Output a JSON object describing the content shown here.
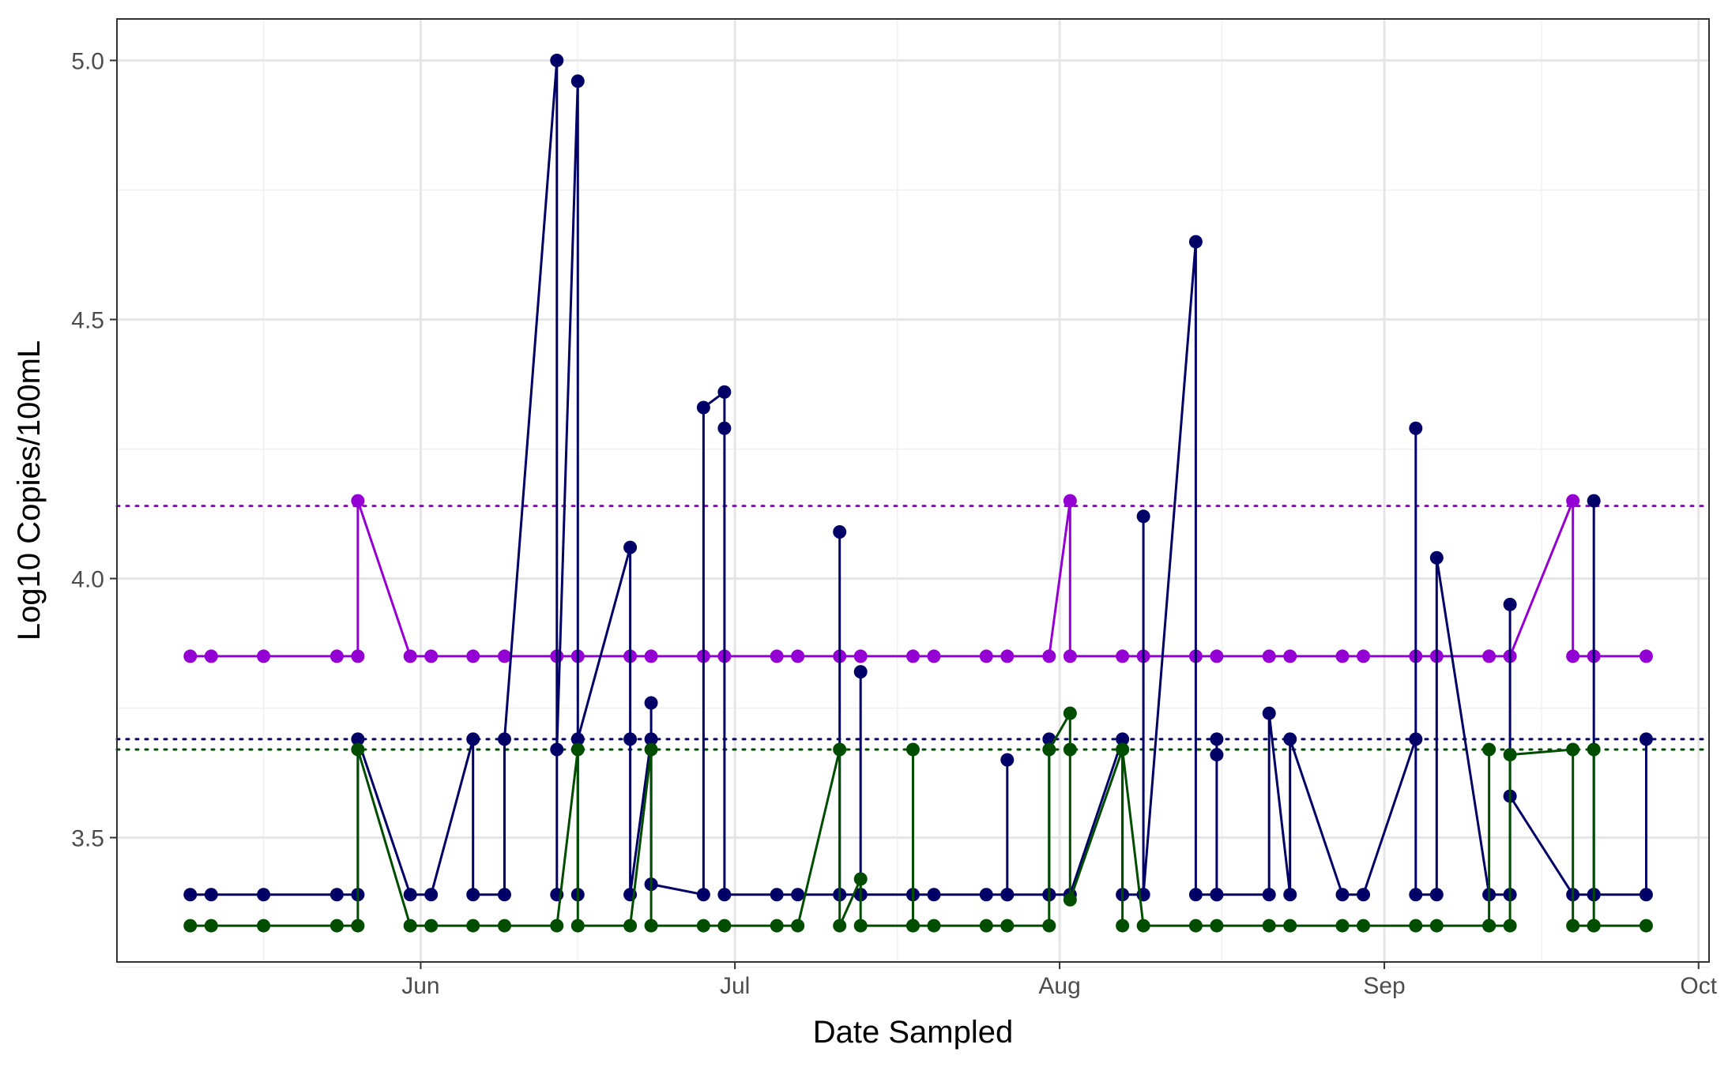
{
  "chart_data": {
    "type": "line",
    "title": "",
    "xlabel": "Date Sampled",
    "ylabel": "Log10 Copies/100mL",
    "x_range": [
      "2024-05-03",
      "2024-10-02"
    ],
    "ylim": [
      3.26,
      5.08
    ],
    "x_ticks": [
      {
        "date": "2024-06-01",
        "label": "Jun"
      },
      {
        "date": "2024-07-01",
        "label": "Jul"
      },
      {
        "date": "2024-08-01",
        "label": "Aug"
      },
      {
        "date": "2024-09-01",
        "label": "Sep"
      },
      {
        "date": "2024-10-01",
        "label": "Oct"
      }
    ],
    "y_ticks": [
      3.5,
      4.0,
      4.5,
      5.0
    ],
    "y_minor_ticks": [
      3.25,
      3.75,
      4.25,
      4.75
    ],
    "grid": true,
    "legend": "none",
    "series": [
      {
        "color": "#9400D3",
        "threshold": 4.14,
        "points": [
          [
            "2024-05-10",
            3.85
          ],
          [
            "2024-05-12",
            3.85
          ],
          [
            "2024-05-17",
            3.85
          ],
          [
            "2024-05-24",
            3.85
          ],
          [
            "2024-05-26",
            3.85
          ],
          [
            "2024-05-26",
            4.15
          ],
          [
            "2024-05-31",
            3.85
          ],
          [
            "2024-06-02",
            3.85
          ],
          [
            "2024-06-06",
            3.85
          ],
          [
            "2024-06-09",
            3.85
          ],
          [
            "2024-06-14",
            3.85
          ],
          [
            "2024-06-16",
            3.85
          ],
          [
            "2024-06-21",
            3.85
          ],
          [
            "2024-06-23",
            3.85
          ],
          [
            "2024-06-28",
            3.85
          ],
          [
            "2024-06-30",
            3.85
          ],
          [
            "2024-07-05",
            3.85
          ],
          [
            "2024-07-07",
            3.85
          ],
          [
            "2024-07-11",
            3.85
          ],
          [
            "2024-07-13",
            3.85
          ],
          [
            "2024-07-18",
            3.85
          ],
          [
            "2024-07-20",
            3.85
          ],
          [
            "2024-07-25",
            3.85
          ],
          [
            "2024-07-27",
            3.85
          ],
          [
            "2024-07-31",
            3.85
          ],
          [
            "2024-08-02",
            4.15
          ],
          [
            "2024-08-02",
            3.85
          ],
          [
            "2024-08-07",
            3.85
          ],
          [
            "2024-08-09",
            3.85
          ],
          [
            "2024-08-14",
            3.85
          ],
          [
            "2024-08-16",
            3.85
          ],
          [
            "2024-08-21",
            3.85
          ],
          [
            "2024-08-23",
            3.85
          ],
          [
            "2024-08-28",
            3.85
          ],
          [
            "2024-08-30",
            3.85
          ],
          [
            "2024-09-04",
            3.85
          ],
          [
            "2024-09-06",
            3.85
          ],
          [
            "2024-09-11",
            3.85
          ],
          [
            "2024-09-13",
            3.85
          ],
          [
            "2024-09-19",
            4.15
          ],
          [
            "2024-09-19",
            3.85
          ],
          [
            "2024-09-21",
            3.85
          ],
          [
            "2024-09-26",
            3.85
          ]
        ]
      },
      {
        "color": "#000066",
        "threshold": 3.69,
        "points": [
          [
            "2024-05-10",
            3.39
          ],
          [
            "2024-05-12",
            3.39
          ],
          [
            "2024-05-17",
            3.39
          ],
          [
            "2024-05-24",
            3.39
          ],
          [
            "2024-05-26",
            3.39
          ],
          [
            "2024-05-26",
            3.69
          ],
          [
            "2024-05-31",
            3.39
          ],
          [
            "2024-06-02",
            3.39
          ],
          [
            "2024-06-06",
            3.69
          ],
          [
            "2024-06-06",
            3.39
          ],
          [
            "2024-06-09",
            3.39
          ],
          [
            "2024-06-09",
            3.69
          ],
          [
            "2024-06-14",
            5.0
          ],
          [
            "2024-06-14",
            3.39
          ],
          [
            "2024-06-14",
            3.67
          ],
          [
            "2024-06-16",
            4.96
          ],
          [
            "2024-06-16",
            3.39
          ],
          [
            "2024-06-16",
            3.69
          ],
          [
            "2024-06-21",
            4.06
          ],
          [
            "2024-06-21",
            3.69
          ],
          [
            "2024-06-21",
            3.39
          ],
          [
            "2024-06-23",
            3.69
          ],
          [
            "2024-06-23",
            3.76
          ],
          [
            "2024-06-23",
            3.41
          ],
          [
            "2024-06-28",
            3.39
          ],
          [
            "2024-06-28",
            4.33
          ],
          [
            "2024-06-30",
            4.36
          ],
          [
            "2024-06-30",
            4.29
          ],
          [
            "2024-06-30",
            3.39
          ],
          [
            "2024-07-05",
            3.39
          ],
          [
            "2024-07-07",
            3.39
          ],
          [
            "2024-07-11",
            3.39
          ],
          [
            "2024-07-11",
            4.09
          ],
          [
            "2024-07-11",
            3.39
          ],
          [
            "2024-07-13",
            3.39
          ],
          [
            "2024-07-13",
            3.82
          ],
          [
            "2024-07-13",
            3.39
          ],
          [
            "2024-07-18",
            3.39
          ],
          [
            "2024-07-20",
            3.39
          ],
          [
            "2024-07-25",
            3.39
          ],
          [
            "2024-07-27",
            3.39
          ],
          [
            "2024-07-27",
            3.65
          ],
          [
            "2024-07-27",
            3.39
          ],
          [
            "2024-07-31",
            3.39
          ],
          [
            "2024-07-31",
            3.69
          ],
          [
            "2024-07-31",
            3.39
          ],
          [
            "2024-08-02",
            3.39
          ],
          [
            "2024-08-07",
            3.69
          ],
          [
            "2024-08-07",
            3.39
          ],
          [
            "2024-08-09",
            3.39
          ],
          [
            "2024-08-09",
            4.12
          ],
          [
            "2024-08-09",
            3.39
          ],
          [
            "2024-08-14",
            4.65
          ],
          [
            "2024-08-14",
            3.39
          ],
          [
            "2024-08-16",
            3.39
          ],
          [
            "2024-08-16",
            3.66
          ],
          [
            "2024-08-16",
            3.69
          ],
          [
            "2024-08-16",
            3.39
          ],
          [
            "2024-08-21",
            3.39
          ],
          [
            "2024-08-21",
            3.74
          ],
          [
            "2024-08-23",
            3.39
          ],
          [
            "2024-08-23",
            3.69
          ],
          [
            "2024-08-28",
            3.39
          ],
          [
            "2024-08-30",
            3.39
          ],
          [
            "2024-09-04",
            3.69
          ],
          [
            "2024-09-04",
            4.29
          ],
          [
            "2024-09-04",
            3.39
          ],
          [
            "2024-09-06",
            3.39
          ],
          [
            "2024-09-06",
            4.04
          ],
          [
            "2024-09-11",
            3.39
          ],
          [
            "2024-09-13",
            3.39
          ],
          [
            "2024-09-13",
            3.95
          ],
          [
            "2024-09-13",
            3.58
          ],
          [
            "2024-09-19",
            3.39
          ],
          [
            "2024-09-21",
            3.39
          ],
          [
            "2024-09-21",
            4.15
          ],
          [
            "2024-09-21",
            3.39
          ],
          [
            "2024-09-26",
            3.39
          ],
          [
            "2024-09-26",
            3.69
          ]
        ]
      },
      {
        "color": "#004D00",
        "threshold": 3.67,
        "points": [
          [
            "2024-05-10",
            3.33
          ],
          [
            "2024-05-12",
            3.33
          ],
          [
            "2024-05-17",
            3.33
          ],
          [
            "2024-05-24",
            3.33
          ],
          [
            "2024-05-26",
            3.33
          ],
          [
            "2024-05-26",
            3.67
          ],
          [
            "2024-05-31",
            3.33
          ],
          [
            "2024-06-02",
            3.33
          ],
          [
            "2024-06-06",
            3.33
          ],
          [
            "2024-06-09",
            3.33
          ],
          [
            "2024-06-14",
            3.33
          ],
          [
            "2024-06-16",
            3.67
          ],
          [
            "2024-06-16",
            3.33
          ],
          [
            "2024-06-21",
            3.33
          ],
          [
            "2024-06-23",
            3.67
          ],
          [
            "2024-06-23",
            3.33
          ],
          [
            "2024-06-28",
            3.33
          ],
          [
            "2024-06-30",
            3.33
          ],
          [
            "2024-07-05",
            3.33
          ],
          [
            "2024-07-07",
            3.33
          ],
          [
            "2024-07-11",
            3.67
          ],
          [
            "2024-07-11",
            3.33
          ],
          [
            "2024-07-13",
            3.42
          ],
          [
            "2024-07-13",
            3.33
          ],
          [
            "2024-07-18",
            3.33
          ],
          [
            "2024-07-18",
            3.67
          ],
          [
            "2024-07-18",
            3.33
          ],
          [
            "2024-07-20",
            3.33
          ],
          [
            "2024-07-25",
            3.33
          ],
          [
            "2024-07-27",
            3.33
          ],
          [
            "2024-07-31",
            3.33
          ],
          [
            "2024-07-31",
            3.67
          ],
          [
            "2024-08-02",
            3.74
          ],
          [
            "2024-08-02",
            3.67
          ],
          [
            "2024-08-02",
            3.38
          ],
          [
            "2024-08-07",
            3.67
          ],
          [
            "2024-08-07",
            3.33
          ],
          [
            "2024-08-07",
            3.67
          ],
          [
            "2024-08-09",
            3.33
          ],
          [
            "2024-08-14",
            3.33
          ],
          [
            "2024-08-16",
            3.33
          ],
          [
            "2024-08-21",
            3.33
          ],
          [
            "2024-08-23",
            3.33
          ],
          [
            "2024-08-28",
            3.33
          ],
          [
            "2024-08-30",
            3.33
          ],
          [
            "2024-09-04",
            3.33
          ],
          [
            "2024-09-06",
            3.33
          ],
          [
            "2024-09-11",
            3.33
          ],
          [
            "2024-09-11",
            3.67
          ],
          [
            "2024-09-11",
            3.33
          ],
          [
            "2024-09-13",
            3.33
          ],
          [
            "2024-09-13",
            3.66
          ],
          [
            "2024-09-19",
            3.67
          ],
          [
            "2024-09-19",
            3.33
          ],
          [
            "2024-09-21",
            3.33
          ],
          [
            "2024-09-21",
            3.67
          ],
          [
            "2024-09-21",
            3.33
          ],
          [
            "2024-09-26",
            3.33
          ]
        ]
      }
    ]
  }
}
